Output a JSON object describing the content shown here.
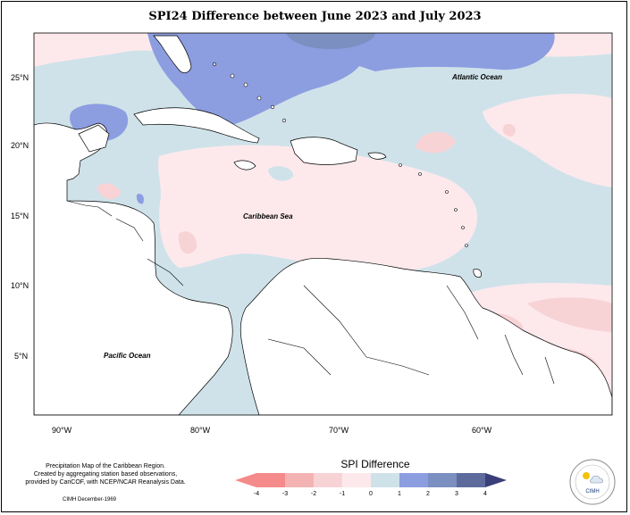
{
  "title": "SPI24 Difference between June 2023 and July 2023",
  "lat_labels": [
    "25°N",
    "20°N",
    "15°N",
    "10°N",
    "5°N"
  ],
  "lon_labels": [
    "90°W",
    "80°W",
    "70°W",
    "60°W"
  ],
  "places": {
    "atlantic": "Atlantic Ocean",
    "caribbean": "Caribbean Sea",
    "pacific": "Pacific Ocean"
  },
  "credit": {
    "line1": "Precipitation Map of the Caribbean Region.",
    "line2": "Created by aggregating station based observations,",
    "line3": "provided by CariCOF, with NCEP/NCAR Reanalysis Data."
  },
  "footer": "CIMH December-1969",
  "legend": {
    "title": "SPI Difference",
    "ticks": [
      "-4",
      "-3",
      "-2",
      "-1",
      "0",
      "1",
      "2",
      "3",
      "4"
    ],
    "colors": [
      "#f58a8a",
      "#f4b3b3",
      "#f8d3d6",
      "#fde9ec",
      "#cfe2ea",
      "#8c9de0",
      "#7b8fc0",
      "#5d6b9c"
    ]
  },
  "logo_text": "CIMH",
  "colors": {
    "pos_light": "#cfe2ea",
    "pos_medium": "#8c9de0",
    "neg_light": "#fde9ec",
    "neg_medium": "#f8d3d6"
  }
}
